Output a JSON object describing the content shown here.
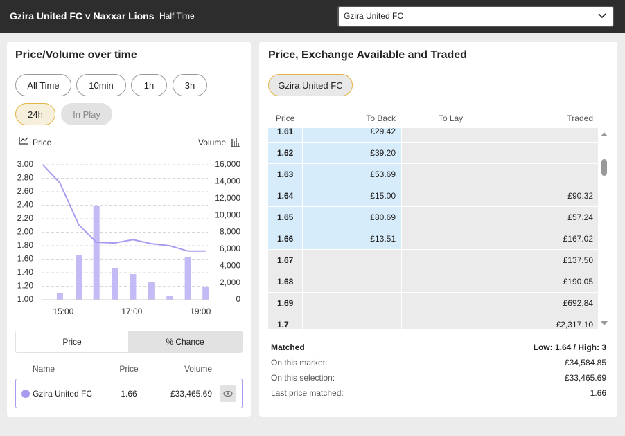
{
  "header": {
    "title": "Gzira United FC v Naxxar Lions",
    "status": "Half Time",
    "selection": "Gzira United FC"
  },
  "left_panel": {
    "title": "Price/Volume over time",
    "range_buttons": [
      "All Time",
      "10min",
      "1h",
      "3h",
      "24h",
      "In Play"
    ],
    "tabs": [
      "Price",
      "% Chance"
    ],
    "table": {
      "headers": [
        "Name",
        "Price",
        "Volume"
      ],
      "rows": [
        [
          "Gzira United FC",
          "1.66",
          "£33,465.69"
        ]
      ]
    }
  },
  "chart_data": {
    "type": "line",
    "legend": [
      "Price",
      "Volume"
    ],
    "series": [
      {
        "name": "Price",
        "color": "#a99cf0",
        "x": [
          864,
          894,
          927,
          958,
          990,
          1022,
          1054,
          1086,
          1118,
          1149
        ],
        "values": [
          3.0,
          2.73,
          2.11,
          1.85,
          1.84,
          1.89,
          1.83,
          1.8,
          1.72,
          1.72
        ]
      },
      {
        "name": "Volume",
        "type": "bar",
        "axis": "y2",
        "color": "#c3bbf5",
        "x": [
          894,
          927,
          958,
          990,
          1022,
          1054,
          1086,
          1118,
          1149
        ],
        "values": [
          820,
          5250,
          11150,
          3770,
          3030,
          2050,
          410,
          5090,
          1560
        ]
      }
    ],
    "xlim": [
      862,
      1153
    ],
    "xticks": [
      {
        "value": 900,
        "label": "15:00"
      },
      {
        "value": 1020,
        "label": "17:00"
      },
      {
        "value": 1140,
        "label": "19:00"
      }
    ],
    "ylim": [
      1,
      3
    ],
    "yticks": [
      {
        "value": 1,
        "label": "1.00"
      },
      {
        "value": 1.2,
        "label": "1.20"
      },
      {
        "value": 1.4,
        "label": "1.40"
      },
      {
        "value": 1.6,
        "label": "1.60"
      },
      {
        "value": 1.8,
        "label": "1.80"
      },
      {
        "value": 2,
        "label": "2.00"
      },
      {
        "value": 2.2,
        "label": "2.20"
      },
      {
        "value": 2.4,
        "label": "2.40"
      },
      {
        "value": 2.6,
        "label": "2.60"
      },
      {
        "value": 2.8,
        "label": "2.80"
      },
      {
        "value": 3,
        "label": "3.00"
      }
    ],
    "y2lim": [
      0,
      16000
    ],
    "y2ticks": [
      0,
      {
        "value": 2000,
        "label": "2,000"
      },
      {
        "value": 4000,
        "label": "4,000"
      },
      {
        "value": 6000,
        "label": "6,000"
      },
      {
        "value": 8000,
        "label": "8,000"
      },
      {
        "value": 10000,
        "label": "10,000"
      },
      {
        "value": 12000,
        "label": "12,000"
      },
      {
        "value": 14000,
        "label": "14,000"
      },
      {
        "value": 16000,
        "label": "16,000"
      }
    ],
    "grid": true
  },
  "right_panel": {
    "title": "Price, Exchange Available and Traded",
    "selection_chip": "Gzira United FC",
    "headers": [
      "Price",
      "To Back",
      "To Lay",
      "Traded"
    ],
    "rows": [
      {
        "price": "1.61",
        "to_back": "£29.42"
      },
      {
        "price": "1.62",
        "to_back": "£39.20"
      },
      {
        "price": "1.63",
        "to_back": "£53.69"
      },
      {
        "price": "1.64",
        "to_back": "£15.00",
        "traded": "£90.32"
      },
      {
        "price": "1.65",
        "to_back": "£80.69",
        "traded": "£57.24"
      },
      {
        "price": "1.66",
        "to_back": "£13.51",
        "traded": "£167.02"
      },
      {
        "price": "1.67",
        "traded": "£137.50"
      },
      {
        "price": "1.68",
        "traded": "£190.05"
      },
      {
        "price": "1.69",
        "traded": "£692.84"
      },
      {
        "price": "1.7",
        "traded": "£2,317.10"
      }
    ],
    "matched": {
      "label": "Matched",
      "range": "Low: 1.64 / High: 3",
      "rows": [
        [
          "On this market:",
          "£34,584.85"
        ],
        [
          "On this selection:",
          "£33,465.69"
        ],
        [
          "Last price matched:",
          "1.66"
        ]
      ]
    }
  }
}
